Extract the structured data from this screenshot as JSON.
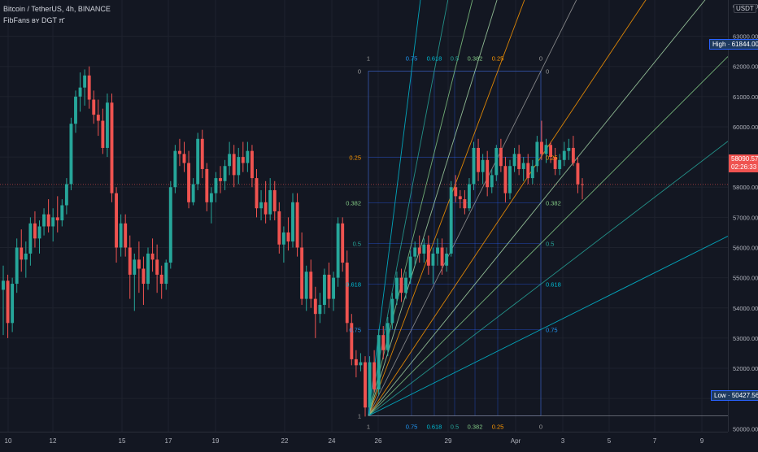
{
  "header": {
    "symbol_line": "Bitcoin / TetherUS, 4h, BINANCE",
    "indicator_line": "FibFans ʙʏ DGT π̄"
  },
  "currency": "USDT",
  "price_scale": {
    "ticks": [
      "51000.00",
      "52000.00",
      "53000.00",
      "54000.00",
      "55000.00",
      "56000.00",
      "57000.00",
      "58000.00",
      "59000.00",
      "60000.00",
      "61000.00",
      "62000.00",
      "63000.00"
    ],
    "tick_values": [
      51000,
      52000,
      53000,
      54000,
      55000,
      56000,
      57000,
      58000,
      59000,
      60000,
      61000,
      62000,
      63000
    ],
    "top_partial": "64000.00",
    "bottom_partial": "50000.00"
  },
  "time_scale": {
    "labels": [
      "10",
      "12",
      "15",
      "17",
      "19",
      "22",
      "24",
      "26",
      "29",
      "Apr",
      "3",
      "5",
      "7",
      "9"
    ]
  },
  "badges": {
    "high_label": "High",
    "high_value": "61844.00",
    "low_label": "Low",
    "low_value": "50427.56",
    "last_price": "58090.57",
    "countdown": "02:26:33"
  },
  "fib_labels": {
    "top": [
      "1",
      "0.75",
      "0.618",
      "0.5",
      "0.382",
      "0.25",
      "0"
    ],
    "bottom": [
      "1",
      "0.75",
      "0.618",
      "0.5",
      "0.382",
      "0.25",
      "0"
    ],
    "left": [
      "0",
      "0.25",
      "0.382",
      "0.5",
      "0.618",
      "0.75",
      "1"
    ],
    "right": [
      "0",
      "0.25",
      "0.382",
      "0.5",
      "0.618",
      "0.75"
    ]
  },
  "colors": {
    "up": "#26a69a",
    "down": "#ef5350",
    "background": "#131722",
    "grid": "#1e222d",
    "fan": [
      "#2196f3",
      "#00bcd4",
      "#26a69a",
      "#81c784",
      "#a5d6a7",
      "#ff9800"
    ]
  },
  "chart_data": {
    "type": "candlestick",
    "title": "Bitcoin / TetherUS, 4h, BINANCE",
    "xlabel": "",
    "ylabel": "",
    "ylim": [
      49900,
      64200
    ],
    "x_ticks": [
      "10",
      "12",
      "15",
      "17",
      "19",
      "22",
      "24",
      "26",
      "29",
      "Apr",
      "3",
      "5",
      "7",
      "9"
    ],
    "fib_levels": [
      0,
      0.25,
      0.382,
      0.5,
      0.618,
      0.75,
      1
    ],
    "fib_anchor": {
      "low": 50427.56,
      "high": 61844.0
    },
    "high": 61844.0,
    "low": 50427.56,
    "last_price": 58090.57,
    "series": [
      {
        "o": 54600,
        "h": 55400,
        "l": 53100,
        "c": 54900
      },
      {
        "o": 54900,
        "h": 55100,
        "l": 53000,
        "c": 53500
      },
      {
        "o": 53500,
        "h": 55000,
        "l": 53200,
        "c": 54800
      },
      {
        "o": 54800,
        "h": 56300,
        "l": 54500,
        "c": 56000
      },
      {
        "o": 56000,
        "h": 56600,
        "l": 55200,
        "c": 55600
      },
      {
        "o": 55600,
        "h": 56200,
        "l": 55000,
        "c": 55800
      },
      {
        "o": 55800,
        "h": 57000,
        "l": 55400,
        "c": 56800
      },
      {
        "o": 56800,
        "h": 57200,
        "l": 56000,
        "c": 56300
      },
      {
        "o": 56300,
        "h": 56900,
        "l": 55800,
        "c": 56700
      },
      {
        "o": 56700,
        "h": 57300,
        "l": 56400,
        "c": 57100
      },
      {
        "o": 57100,
        "h": 57600,
        "l": 56500,
        "c": 56700
      },
      {
        "o": 56700,
        "h": 57300,
        "l": 56200,
        "c": 57000
      },
      {
        "o": 57000,
        "h": 57700,
        "l": 56500,
        "c": 56900
      },
      {
        "o": 56900,
        "h": 57600,
        "l": 56700,
        "c": 57400
      },
      {
        "o": 57400,
        "h": 58300,
        "l": 57100,
        "c": 58100
      },
      {
        "o": 58100,
        "h": 60300,
        "l": 57900,
        "c": 60100
      },
      {
        "o": 60100,
        "h": 61200,
        "l": 59800,
        "c": 61000
      },
      {
        "o": 61000,
        "h": 61800,
        "l": 60500,
        "c": 61300
      },
      {
        "o": 61300,
        "h": 61900,
        "l": 60700,
        "c": 61700
      },
      {
        "o": 61700,
        "h": 62000,
        "l": 60600,
        "c": 60900
      },
      {
        "o": 60900,
        "h": 61200,
        "l": 60100,
        "c": 60400
      },
      {
        "o": 60400,
        "h": 60900,
        "l": 59700,
        "c": 60200
      },
      {
        "o": 60200,
        "h": 60600,
        "l": 59100,
        "c": 59300
      },
      {
        "o": 59300,
        "h": 61100,
        "l": 59000,
        "c": 60800
      },
      {
        "o": 60800,
        "h": 61100,
        "l": 57500,
        "c": 57800
      },
      {
        "o": 57800,
        "h": 58000,
        "l": 55500,
        "c": 56000
      },
      {
        "o": 56000,
        "h": 57100,
        "l": 55700,
        "c": 56800
      },
      {
        "o": 56800,
        "h": 57100,
        "l": 55700,
        "c": 56000
      },
      {
        "o": 56000,
        "h": 56400,
        "l": 54300,
        "c": 55100
      },
      {
        "o": 55100,
        "h": 55800,
        "l": 53900,
        "c": 55600
      },
      {
        "o": 55600,
        "h": 56200,
        "l": 54500,
        "c": 55300
      },
      {
        "o": 55300,
        "h": 55700,
        "l": 54100,
        "c": 54800
      },
      {
        "o": 54800,
        "h": 56000,
        "l": 54600,
        "c": 55800
      },
      {
        "o": 55800,
        "h": 56300,
        "l": 55200,
        "c": 55600
      },
      {
        "o": 55600,
        "h": 56100,
        "l": 54500,
        "c": 55100
      },
      {
        "o": 55100,
        "h": 55400,
        "l": 54300,
        "c": 54800
      },
      {
        "o": 54800,
        "h": 55600,
        "l": 54600,
        "c": 55500
      },
      {
        "o": 55500,
        "h": 58200,
        "l": 55300,
        "c": 58000
      },
      {
        "o": 58000,
        "h": 59400,
        "l": 57800,
        "c": 59200
      },
      {
        "o": 59200,
        "h": 59600,
        "l": 58700,
        "c": 59100
      },
      {
        "o": 59100,
        "h": 59500,
        "l": 58500,
        "c": 58800
      },
      {
        "o": 58800,
        "h": 59200,
        "l": 57300,
        "c": 57500
      },
      {
        "o": 57500,
        "h": 58300,
        "l": 57400,
        "c": 58100
      },
      {
        "o": 58100,
        "h": 59800,
        "l": 57900,
        "c": 59600
      },
      {
        "o": 59600,
        "h": 59900,
        "l": 58300,
        "c": 58600
      },
      {
        "o": 58600,
        "h": 58800,
        "l": 57200,
        "c": 57500
      },
      {
        "o": 57500,
        "h": 58000,
        "l": 56800,
        "c": 57800
      },
      {
        "o": 57800,
        "h": 58500,
        "l": 57500,
        "c": 58300
      },
      {
        "o": 58300,
        "h": 58700,
        "l": 57800,
        "c": 58200
      },
      {
        "o": 58200,
        "h": 58900,
        "l": 57900,
        "c": 58700
      },
      {
        "o": 58700,
        "h": 59500,
        "l": 58400,
        "c": 59100
      },
      {
        "o": 59100,
        "h": 59400,
        "l": 58000,
        "c": 58400
      },
      {
        "o": 58400,
        "h": 59300,
        "l": 58100,
        "c": 59000
      },
      {
        "o": 59000,
        "h": 59500,
        "l": 58500,
        "c": 58800
      },
      {
        "o": 58800,
        "h": 59500,
        "l": 58500,
        "c": 59200
      },
      {
        "o": 59200,
        "h": 59400,
        "l": 58000,
        "c": 58300
      },
      {
        "o": 58300,
        "h": 58600,
        "l": 57000,
        "c": 57300
      },
      {
        "o": 57300,
        "h": 57900,
        "l": 56900,
        "c": 57500
      },
      {
        "o": 57500,
        "h": 58200,
        "l": 56800,
        "c": 57100
      },
      {
        "o": 57100,
        "h": 58300,
        "l": 56900,
        "c": 57900
      },
      {
        "o": 57900,
        "h": 58200,
        "l": 56900,
        "c": 57200
      },
      {
        "o": 57200,
        "h": 57500,
        "l": 55800,
        "c": 56100
      },
      {
        "o": 56100,
        "h": 56700,
        "l": 55500,
        "c": 56500
      },
      {
        "o": 56500,
        "h": 57000,
        "l": 55900,
        "c": 56200
      },
      {
        "o": 56200,
        "h": 57800,
        "l": 56000,
        "c": 57500
      },
      {
        "o": 57500,
        "h": 57800,
        "l": 55700,
        "c": 56000
      },
      {
        "o": 56000,
        "h": 56500,
        "l": 54100,
        "c": 54300
      },
      {
        "o": 54300,
        "h": 55400,
        "l": 53900,
        "c": 55200
      },
      {
        "o": 55200,
        "h": 55600,
        "l": 54000,
        "c": 54300
      },
      {
        "o": 54300,
        "h": 54700,
        "l": 53000,
        "c": 53800
      },
      {
        "o": 53800,
        "h": 54500,
        "l": 53500,
        "c": 54100
      },
      {
        "o": 54100,
        "h": 55300,
        "l": 53800,
        "c": 55100
      },
      {
        "o": 55100,
        "h": 55500,
        "l": 54000,
        "c": 54300
      },
      {
        "o": 54300,
        "h": 55200,
        "l": 53900,
        "c": 55000
      },
      {
        "o": 55000,
        "h": 57000,
        "l": 54700,
        "c": 56800
      },
      {
        "o": 56800,
        "h": 57000,
        "l": 55200,
        "c": 55500
      },
      {
        "o": 55500,
        "h": 55900,
        "l": 53200,
        "c": 53500
      },
      {
        "o": 53500,
        "h": 53800,
        "l": 52100,
        "c": 52300
      },
      {
        "o": 52300,
        "h": 52600,
        "l": 51700,
        "c": 52100
      },
      {
        "o": 52100,
        "h": 52500,
        "l": 51900,
        "c": 52200
      },
      {
        "o": 52200,
        "h": 52400,
        "l": 50400,
        "c": 50700
      },
      {
        "o": 50700,
        "h": 52400,
        "l": 50430,
        "c": 52200
      },
      {
        "o": 52200,
        "h": 52600,
        "l": 51200,
        "c": 51300
      },
      {
        "o": 51300,
        "h": 53300,
        "l": 51100,
        "c": 53100
      },
      {
        "o": 53100,
        "h": 53400,
        "l": 52300,
        "c": 52600
      },
      {
        "o": 52600,
        "h": 53700,
        "l": 52400,
        "c": 53500
      },
      {
        "o": 53500,
        "h": 54500,
        "l": 53300,
        "c": 54300
      },
      {
        "o": 54300,
        "h": 55200,
        "l": 54100,
        "c": 55000
      },
      {
        "o": 55000,
        "h": 55300,
        "l": 54200,
        "c": 54500
      },
      {
        "o": 54500,
        "h": 55200,
        "l": 54300,
        "c": 55000
      },
      {
        "o": 55000,
        "h": 55900,
        "l": 54800,
        "c": 55700
      },
      {
        "o": 55700,
        "h": 56200,
        "l": 55400,
        "c": 56000
      },
      {
        "o": 56000,
        "h": 56400,
        "l": 55500,
        "c": 55800
      },
      {
        "o": 55800,
        "h": 56300,
        "l": 55500,
        "c": 56100
      },
      {
        "o": 56100,
        "h": 56400,
        "l": 55100,
        "c": 55400
      },
      {
        "o": 55400,
        "h": 56000,
        "l": 54800,
        "c": 55800
      },
      {
        "o": 55800,
        "h": 56300,
        "l": 55400,
        "c": 56000
      },
      {
        "o": 56000,
        "h": 56300,
        "l": 55100,
        "c": 55400
      },
      {
        "o": 55400,
        "h": 56000,
        "l": 55200,
        "c": 55800
      },
      {
        "o": 55800,
        "h": 58200,
        "l": 55700,
        "c": 58000
      },
      {
        "o": 58000,
        "h": 58400,
        "l": 57500,
        "c": 57700
      },
      {
        "o": 57700,
        "h": 57900,
        "l": 57300,
        "c": 57600
      },
      {
        "o": 57600,
        "h": 57900,
        "l": 57100,
        "c": 57300
      },
      {
        "o": 57300,
        "h": 58300,
        "l": 57200,
        "c": 58100
      },
      {
        "o": 58100,
        "h": 59500,
        "l": 57900,
        "c": 59300
      },
      {
        "o": 59300,
        "h": 59600,
        "l": 58200,
        "c": 58500
      },
      {
        "o": 58500,
        "h": 59100,
        "l": 58100,
        "c": 58900
      },
      {
        "o": 58900,
        "h": 59200,
        "l": 57700,
        "c": 58000
      },
      {
        "o": 58000,
        "h": 58600,
        "l": 57800,
        "c": 58400
      },
      {
        "o": 58400,
        "h": 59400,
        "l": 58200,
        "c": 59300
      },
      {
        "o": 59300,
        "h": 59600,
        "l": 58500,
        "c": 58700
      },
      {
        "o": 58700,
        "h": 59000,
        "l": 57500,
        "c": 57800
      },
      {
        "o": 57800,
        "h": 58900,
        "l": 57600,
        "c": 58700
      },
      {
        "o": 58700,
        "h": 59300,
        "l": 58500,
        "c": 59100
      },
      {
        "o": 59100,
        "h": 59400,
        "l": 58400,
        "c": 58600
      },
      {
        "o": 58600,
        "h": 59000,
        "l": 58200,
        "c": 58800
      },
      {
        "o": 58800,
        "h": 59100,
        "l": 58100,
        "c": 58300
      },
      {
        "o": 58300,
        "h": 58900,
        "l": 58100,
        "c": 58700
      },
      {
        "o": 58700,
        "h": 59700,
        "l": 58500,
        "c": 59500
      },
      {
        "o": 59500,
        "h": 60200,
        "l": 58900,
        "c": 59100
      },
      {
        "o": 59100,
        "h": 59600,
        "l": 58800,
        "c": 59400
      },
      {
        "o": 59400,
        "h": 59500,
        "l": 58800,
        "c": 59000
      },
      {
        "o": 59000,
        "h": 59300,
        "l": 58400,
        "c": 58600
      },
      {
        "o": 58600,
        "h": 59100,
        "l": 58400,
        "c": 58900
      },
      {
        "o": 58900,
        "h": 59500,
        "l": 58700,
        "c": 59200
      },
      {
        "o": 59200,
        "h": 59600,
        "l": 58900,
        "c": 59300
      },
      {
        "o": 59300,
        "h": 59700,
        "l": 58700,
        "c": 58800
      },
      {
        "o": 58800,
        "h": 59000,
        "l": 57800,
        "c": 58100
      },
      {
        "o": 58100,
        "h": 58300,
        "l": 57600,
        "c": 58090
      }
    ]
  }
}
